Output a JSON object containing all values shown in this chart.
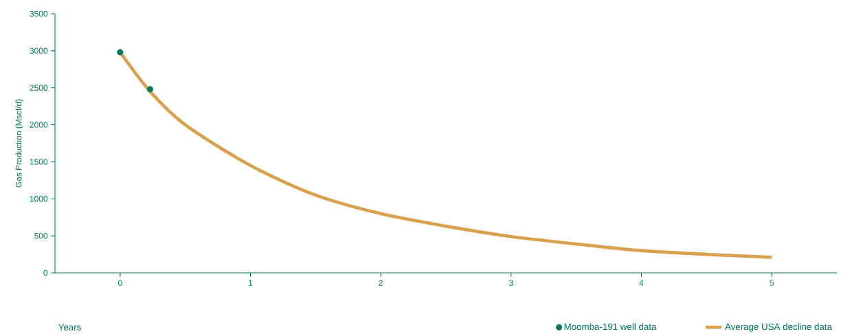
{
  "chart_data": {
    "type": "line",
    "xlabel": "Years",
    "ylabel": "Gas Production (Mscf/d)",
    "xlim": [
      -0.5,
      5.5
    ],
    "xticks": [
      0,
      1,
      2,
      3,
      4,
      5
    ],
    "ylim": [
      0,
      3500
    ],
    "yticks": [
      0,
      500,
      1000,
      1500,
      2000,
      2500,
      3000,
      3500
    ],
    "grid": false,
    "legend": "bottom right",
    "series": [
      {
        "name": "Moomba-191 well data",
        "type": "scatter",
        "color": "#00775a",
        "marker": "circle",
        "x": [
          0,
          0.23
        ],
        "values": [
          2980,
          2480
        ]
      },
      {
        "name": "Average USA decline data",
        "color": "#d9a04e",
        "marker": "none",
        "x": [
          0,
          0.23,
          0.5,
          1,
          1.5,
          2,
          2.5,
          3,
          3.5,
          4,
          4.5,
          5
        ],
        "values": [
          2980,
          2450,
          2000,
          1450,
          1050,
          800,
          630,
          490,
          390,
          300,
          250,
          210
        ]
      }
    ]
  }
}
